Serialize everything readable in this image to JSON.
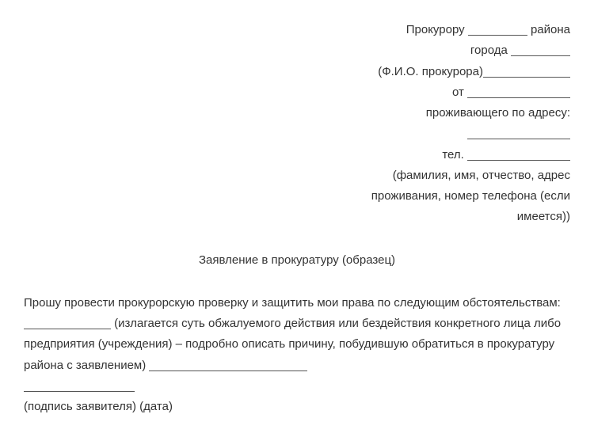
{
  "header": {
    "line1_a": "Прокурору ",
    "line1_b": " района",
    "line2_a": "города ",
    "line3_a": "(Ф.И.О. прокурора)",
    "line4_a": "от ",
    "line5": "проживающего по адресу:",
    "line7_a": "тел. ",
    "line8": "(фамилия, имя, отчество, адрес",
    "line9": "проживания, номер телефона (если",
    "line10": "имеется))"
  },
  "title": "Заявление в прокуратуру (образец)",
  "body": {
    "part1": "Прошу провести прокурорскую проверку и защитить мои права по следующим обстоятельствам: ",
    "part2": " (излагается суть обжалуемого действия или бездействия конкретного лица либо предприятия (учреждения) – подробно описать причину, побудившую обратиться в прокуратуру района с заявлением) ",
    "signature": "(подпись заявителя) (дата)"
  }
}
